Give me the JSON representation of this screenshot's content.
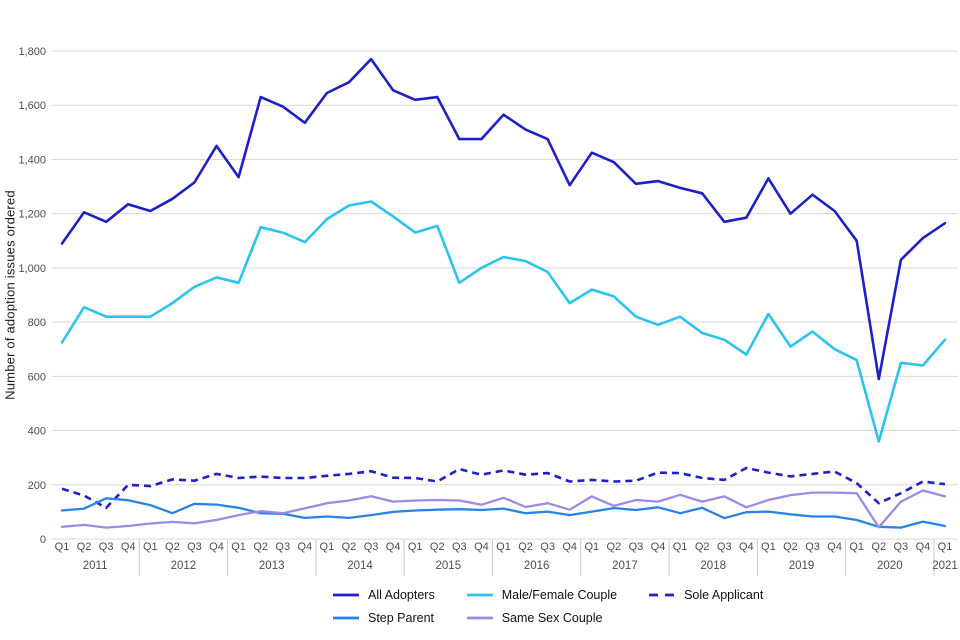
{
  "y_axis_title": "Number of adoption issues ordered",
  "colors": {
    "navy": "#1d20c8",
    "cyan": "#2cc3f0",
    "blue": "#2683ea",
    "purple": "#9b8ae8",
    "gridline": "#d9d9d9",
    "axis_text": "#4d4d4d",
    "year_separator": "#c8c8c8",
    "legend_text": "#111111"
  },
  "chart_data": {
    "type": "line",
    "title": "",
    "xlabel": "",
    "ylabel": "Number of adoption issues ordered",
    "ylim": [
      0,
      1800
    ],
    "y_tick_step": 200,
    "y_tick_labels": [
      "0",
      "200",
      "400",
      "600",
      "800",
      "1,000",
      "1,200",
      "1,400",
      "1,600",
      "1,800"
    ],
    "grid": true,
    "legend_position": "bottom",
    "years": [
      "2011",
      "2012",
      "2013",
      "2014",
      "2015",
      "2016",
      "2017",
      "2018",
      "2019",
      "2020",
      "2021"
    ],
    "quarters_per_year": [
      4,
      4,
      4,
      4,
      4,
      4,
      4,
      4,
      4,
      4,
      1
    ],
    "categories": [
      "Q1 2011",
      "Q2 2011",
      "Q3 2011",
      "Q4 2011",
      "Q1 2012",
      "Q2 2012",
      "Q3 2012",
      "Q4 2012",
      "Q1 2013",
      "Q2 2013",
      "Q3 2013",
      "Q4 2013",
      "Q1 2014",
      "Q2 2014",
      "Q3 2014",
      "Q4 2014",
      "Q1 2015",
      "Q2 2015",
      "Q3 2015",
      "Q4 2015",
      "Q1 2016",
      "Q2 2016",
      "Q3 2016",
      "Q4 2016",
      "Q1 2017",
      "Q2 2017",
      "Q3 2017",
      "Q4 2017",
      "Q1 2018",
      "Q2 2018",
      "Q3 2018",
      "Q4 2018",
      "Q1 2019",
      "Q2 2019",
      "Q3 2019",
      "Q4 2019",
      "Q1 2020",
      "Q2 2020",
      "Q3 2020",
      "Q4 2020",
      "Q1 2021"
    ],
    "series": [
      {
        "name": "All Adopters",
        "style": "solid",
        "color": "#1d20c8",
        "width": 2.6,
        "values": [
          1090,
          1205,
          1170,
          1235,
          1210,
          1255,
          1315,
          1450,
          1335,
          1630,
          1595,
          1535,
          1645,
          1685,
          1770,
          1655,
          1620,
          1630,
          1475,
          1475,
          1565,
          1510,
          1475,
          1305,
          1425,
          1390,
          1310,
          1320,
          1295,
          1275,
          1170,
          1185,
          1330,
          1200,
          1270,
          1210,
          1100,
          590,
          1030,
          1110,
          1165
        ]
      },
      {
        "name": "Male/Female Couple",
        "style": "solid",
        "color": "#2cc3f0",
        "width": 2.6,
        "values": [
          725,
          855,
          820,
          820,
          820,
          870,
          930,
          965,
          945,
          1150,
          1130,
          1095,
          1180,
          1230,
          1245,
          1190,
          1130,
          1155,
          945,
          1000,
          1040,
          1025,
          985,
          870,
          920,
          895,
          820,
          790,
          820,
          760,
          735,
          680,
          830,
          710,
          765,
          700,
          660,
          360,
          650,
          640,
          735
        ]
      },
      {
        "name": "Sole Applicant",
        "style": "dashed",
        "color": "#1d20c8",
        "width": 2.6,
        "values": [
          185,
          160,
          115,
          200,
          195,
          220,
          215,
          240,
          225,
          230,
          225,
          225,
          233,
          240,
          250,
          226,
          225,
          212,
          258,
          237,
          253,
          237,
          243,
          212,
          218,
          212,
          215,
          245,
          243,
          225,
          218,
          262,
          245,
          231,
          240,
          249,
          206,
          132,
          169,
          212,
          202
        ]
      },
      {
        "name": "Step Parent",
        "style": "solid",
        "color": "#2683ea",
        "width": 2.3,
        "values": [
          105,
          112,
          150,
          143,
          125,
          95,
          130,
          127,
          115,
          95,
          93,
          78,
          83,
          78,
          88,
          100,
          105,
          108,
          110,
          107,
          112,
          95,
          101,
          88,
          101,
          114,
          107,
          117,
          95,
          115,
          77,
          99,
          101,
          91,
          83,
          83,
          70,
          45,
          42,
          64,
          48
        ]
      },
      {
        "name": "Same Sex Couple",
        "style": "solid",
        "color": "#9b8ae8",
        "width": 2.3,
        "values": [
          45,
          52,
          42,
          48,
          57,
          63,
          58,
          70,
          88,
          103,
          95,
          113,
          132,
          142,
          158,
          138,
          142,
          144,
          142,
          126,
          152,
          118,
          132,
          108,
          157,
          122,
          144,
          138,
          163,
          138,
          157,
          117,
          144,
          162,
          171,
          171,
          169,
          43,
          138,
          179,
          157
        ]
      }
    ],
    "legend_order_rows": [
      [
        "All Adopters",
        "Male/Female Couple",
        "Sole Applicant"
      ],
      [
        "Step Parent",
        "Same Sex Couple"
      ]
    ]
  }
}
